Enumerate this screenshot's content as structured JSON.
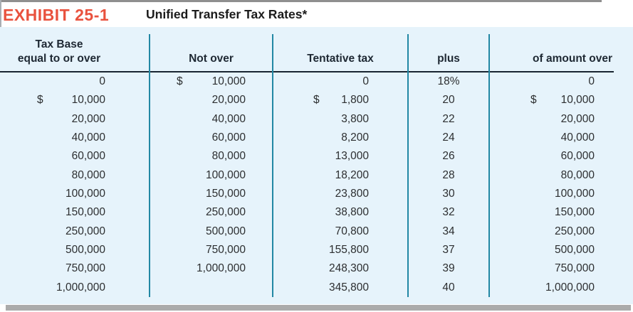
{
  "exhibit": {
    "label": "EXHIBIT 25-1",
    "title": "Unified Transfer Tax Rates*"
  },
  "colors": {
    "exhibit_label_red": "#e9523e",
    "panel_blue": "#e6f3fb",
    "divider_teal": "#2287a4",
    "header_rule_dark": "#182430",
    "text_dark": "#2c2e30"
  },
  "table": {
    "headers": [
      "Tax Base\nequal to or over",
      "Not over",
      "Tentative tax",
      "plus",
      "of amount over"
    ],
    "rows": [
      [
        {
          "cur": "",
          "val": "0"
        },
        {
          "cur": "$",
          "val": "10,000"
        },
        {
          "cur": "",
          "val": "0"
        },
        {
          "cur": "",
          "val": "18%"
        },
        {
          "cur": "",
          "val": "0"
        }
      ],
      [
        {
          "cur": "$",
          "val": "10,000"
        },
        {
          "cur": "",
          "val": "20,000"
        },
        {
          "cur": "$",
          "val": "1,800"
        },
        {
          "cur": "",
          "val": "20"
        },
        {
          "cur": "$",
          "val": "10,000"
        }
      ],
      [
        {
          "cur": "",
          "val": "20,000"
        },
        {
          "cur": "",
          "val": "40,000"
        },
        {
          "cur": "",
          "val": "3,800"
        },
        {
          "cur": "",
          "val": "22"
        },
        {
          "cur": "",
          "val": "20,000"
        }
      ],
      [
        {
          "cur": "",
          "val": "40,000"
        },
        {
          "cur": "",
          "val": "60,000"
        },
        {
          "cur": "",
          "val": "8,200"
        },
        {
          "cur": "",
          "val": "24"
        },
        {
          "cur": "",
          "val": "40,000"
        }
      ],
      [
        {
          "cur": "",
          "val": "60,000"
        },
        {
          "cur": "",
          "val": "80,000"
        },
        {
          "cur": "",
          "val": "13,000"
        },
        {
          "cur": "",
          "val": "26"
        },
        {
          "cur": "",
          "val": "60,000"
        }
      ],
      [
        {
          "cur": "",
          "val": "80,000"
        },
        {
          "cur": "",
          "val": "100,000"
        },
        {
          "cur": "",
          "val": "18,200"
        },
        {
          "cur": "",
          "val": "28"
        },
        {
          "cur": "",
          "val": "80,000"
        }
      ],
      [
        {
          "cur": "",
          "val": "100,000"
        },
        {
          "cur": "",
          "val": "150,000"
        },
        {
          "cur": "",
          "val": "23,800"
        },
        {
          "cur": "",
          "val": "30"
        },
        {
          "cur": "",
          "val": "100,000"
        }
      ],
      [
        {
          "cur": "",
          "val": "150,000"
        },
        {
          "cur": "",
          "val": "250,000"
        },
        {
          "cur": "",
          "val": "38,800"
        },
        {
          "cur": "",
          "val": "32"
        },
        {
          "cur": "",
          "val": "150,000"
        }
      ],
      [
        {
          "cur": "",
          "val": "250,000"
        },
        {
          "cur": "",
          "val": "500,000"
        },
        {
          "cur": "",
          "val": "70,800"
        },
        {
          "cur": "",
          "val": "34"
        },
        {
          "cur": "",
          "val": "250,000"
        }
      ],
      [
        {
          "cur": "",
          "val": "500,000"
        },
        {
          "cur": "",
          "val": "750,000"
        },
        {
          "cur": "",
          "val": "155,800"
        },
        {
          "cur": "",
          "val": "37"
        },
        {
          "cur": "",
          "val": "500,000"
        }
      ],
      [
        {
          "cur": "",
          "val": "750,000"
        },
        {
          "cur": "",
          "val": "1,000,000"
        },
        {
          "cur": "",
          "val": "248,300"
        },
        {
          "cur": "",
          "val": "39"
        },
        {
          "cur": "",
          "val": "750,000"
        }
      ],
      [
        {
          "cur": "",
          "val": "1,000,000"
        },
        {
          "cur": "",
          "val": ""
        },
        {
          "cur": "",
          "val": "345,800"
        },
        {
          "cur": "",
          "val": "40"
        },
        {
          "cur": "",
          "val": "1,000,000"
        }
      ]
    ]
  }
}
